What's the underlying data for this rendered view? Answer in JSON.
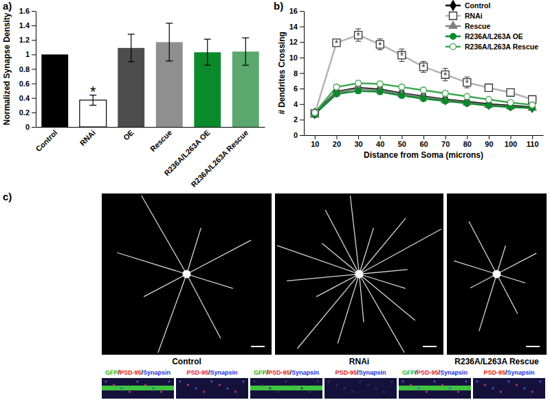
{
  "chart_data": [
    {
      "type": "bar",
      "title": "a)",
      "ylabel": "Normalized Synapse Density",
      "categories": [
        "Control",
        "RNAi",
        "OE",
        "Rescue",
        "R236A/L263A OE",
        "R236A/L263A Rescue"
      ],
      "values": [
        1,
        0.37,
        1.09,
        1.17,
        1.03,
        1.04
      ],
      "errors": [
        null,
        0.07,
        0.19,
        0.26,
        0.18,
        0.19
      ],
      "colors": [
        "#000000",
        "#ffffff",
        "#4d4d4d",
        "#8f8f8f",
        "#0b8a2c",
        "#5aa86d"
      ],
      "ylim": [
        0,
        1.6
      ],
      "yticks": [
        0,
        0.2,
        0.4,
        0.6,
        0.8,
        1,
        1.2,
        1.4,
        1.6
      ],
      "annotations": [
        {
          "text": "*",
          "category": "RNAi"
        }
      ]
    },
    {
      "type": "line",
      "title": "b)",
      "xlabel": "Distance from Soma (microns)",
      "ylabel": "# Dendrites Crossing",
      "x": [
        10,
        20,
        30,
        40,
        50,
        60,
        70,
        80,
        90,
        100,
        110
      ],
      "xlim": [
        5,
        115
      ],
      "xticks": [
        10,
        20,
        30,
        40,
        50,
        60,
        70,
        80,
        90,
        100,
        110
      ],
      "ylim": [
        0,
        16
      ],
      "yticks": [
        0,
        2,
        4,
        6,
        8,
        10,
        12,
        14,
        16
      ],
      "legend": "top-right",
      "series": [
        {
          "name": "Control",
          "color": "#000000",
          "marker": "diamond",
          "values": [
            2.8,
            5.6,
            6.1,
            5.9,
            5.4,
            5.0,
            4.6,
            4.3,
            4.0,
            3.8,
            3.6
          ],
          "errors": [
            0.2,
            0.3,
            0.3,
            0.3,
            0.3,
            0.3,
            0.3,
            0.2,
            0.2,
            0.2,
            0.2
          ]
        },
        {
          "name": "RNAi",
          "color": "#b3b3b3",
          "marker": "open-square",
          "values": [
            2.8,
            11.9,
            12.9,
            11.7,
            10.3,
            8.8,
            7.8,
            6.8,
            6.1,
            5.5,
            4.6
          ],
          "errors": [
            0.4,
            0.4,
            0.8,
            0.7,
            0.8,
            0.7,
            0.8,
            0.7,
            0.3,
            0.3,
            0.3
          ]
        },
        {
          "name": "Rescue",
          "color": "#808080",
          "marker": "triangle",
          "values": [
            2.7,
            5.5,
            6.0,
            5.8,
            5.3,
            4.9,
            4.5,
            4.2,
            3.9,
            3.7,
            3.5
          ],
          "errors": [
            0.2,
            0.3,
            0.3,
            0.3,
            0.3,
            0.3,
            0.3,
            0.2,
            0.2,
            0.2,
            0.2
          ]
        },
        {
          "name": "R236A/L263A OE",
          "color": "#0b8a2c",
          "marker": "circle",
          "values": [
            2.7,
            5.3,
            5.7,
            5.6,
            5.1,
            4.7,
            4.4,
            4.1,
            3.8,
            3.6,
            3.5
          ],
          "errors": [
            0.2,
            0.3,
            0.3,
            0.3,
            0.3,
            0.3,
            0.3,
            0.2,
            0.2,
            0.2,
            0.2
          ]
        },
        {
          "name": "R236A/L263A Rescue",
          "color": "#3ca84f",
          "marker": "open-circle",
          "values": [
            2.9,
            6.2,
            6.7,
            6.6,
            6.2,
            5.8,
            5.4,
            5.0,
            4.6,
            4.2,
            3.9
          ],
          "errors": [
            0.2,
            0.3,
            0.3,
            0.3,
            0.3,
            0.3,
            0.3,
            0.2,
            0.2,
            0.2,
            0.2
          ]
        }
      ],
      "annotations": [
        {
          "text": "*",
          "series": "RNAi",
          "x": 20
        },
        {
          "text": "*",
          "series": "RNAi",
          "x": 30
        },
        {
          "text": "*",
          "series": "RNAi",
          "x": 40
        },
        {
          "text": "*",
          "series": "RNAi",
          "x": 50
        },
        {
          "text": "*",
          "series": "RNAi",
          "x": 60
        },
        {
          "text": "*",
          "series": "RNAi",
          "x": 70
        },
        {
          "text": "*",
          "series": "RNAi",
          "x": 80
        }
      ]
    }
  ],
  "images": {
    "label": "c)",
    "panels": [
      {
        "caption": "Control",
        "insets": [
          [
            {
              "text": "GFP",
              "color": "#22b522"
            },
            {
              "text": "/",
              "color": "#000000"
            },
            {
              "text": "PSD-95",
              "color": "#e02020"
            },
            {
              "text": "/",
              "color": "#000000"
            },
            {
              "text": "Synapsin",
              "color": "#2030e0"
            }
          ],
          [
            {
              "text": "PSD-95",
              "color": "#e02020"
            },
            {
              "text": "/",
              "color": "#000000"
            },
            {
              "text": "Synapsin",
              "color": "#2030e0"
            }
          ]
        ]
      },
      {
        "caption": "RNAi",
        "insets": [
          [
            {
              "text": "GFP",
              "color": "#22b522"
            },
            {
              "text": "/",
              "color": "#000000"
            },
            {
              "text": "PSD-95",
              "color": "#e02020"
            },
            {
              "text": "/",
              "color": "#000000"
            },
            {
              "text": "Synapsin",
              "color": "#2030e0"
            }
          ],
          [
            {
              "text": "PSD-95",
              "color": "#e02020"
            },
            {
              "text": "/",
              "color": "#000000"
            },
            {
              "text": "Synapsin",
              "color": "#2030e0"
            }
          ]
        ]
      },
      {
        "caption": "R236A/L263A Rescue",
        "insets": [
          [
            {
              "text": "GFP",
              "color": "#22b522"
            },
            {
              "text": "/",
              "color": "#000000"
            },
            {
              "text": "PSD-95",
              "color": "#e02020"
            },
            {
              "text": "/",
              "color": "#000000"
            },
            {
              "text": "Synapsin",
              "color": "#2030e0"
            }
          ],
          [
            {
              "text": "PSD-95",
              "color": "#e02020"
            },
            {
              "text": "/",
              "color": "#000000"
            },
            {
              "text": "Synapsin",
              "color": "#2030e0"
            }
          ]
        ]
      }
    ]
  }
}
